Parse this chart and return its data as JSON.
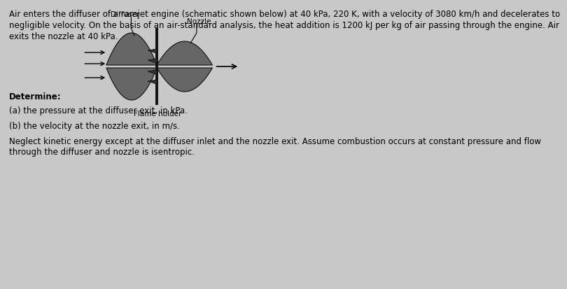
{
  "background_color": "#c8c8c8",
  "title_line1": "Air enters the diffuser of a ramjet engine (schematic shown below) at 40 kPa, 220 K, with a velocity of 3080 km/h and decelerates to",
  "title_line2": "negligible velocity. On the basis of an air-standard analysis, the heat addition is 1200 kJ per kg of air passing through the engine. Air",
  "title_line3": "exits the nozzle at 40 kPa.",
  "determine_text": "Determine:",
  "part_a": "(a) the pressure at the diffuser exit, in kPa.",
  "part_b": "(b) the velocity at the nozzle exit, in m/s.",
  "neglect_line1": "Neglect kinetic energy except at the diffuser inlet and the nozzle exit. Assume combustion occurs at constant pressure and flow",
  "neglect_line2": "through the diffuser and nozzle is isentropic.",
  "label_diffuser": "Diffuser",
  "label_nozzle": "Nozzle",
  "label_flame": "Flame holder",
  "font_size_body": 8.5,
  "font_size_label": 7.5,
  "lobe_color": "#666666",
  "bar_color": "#111111",
  "fin_color": "#333333"
}
